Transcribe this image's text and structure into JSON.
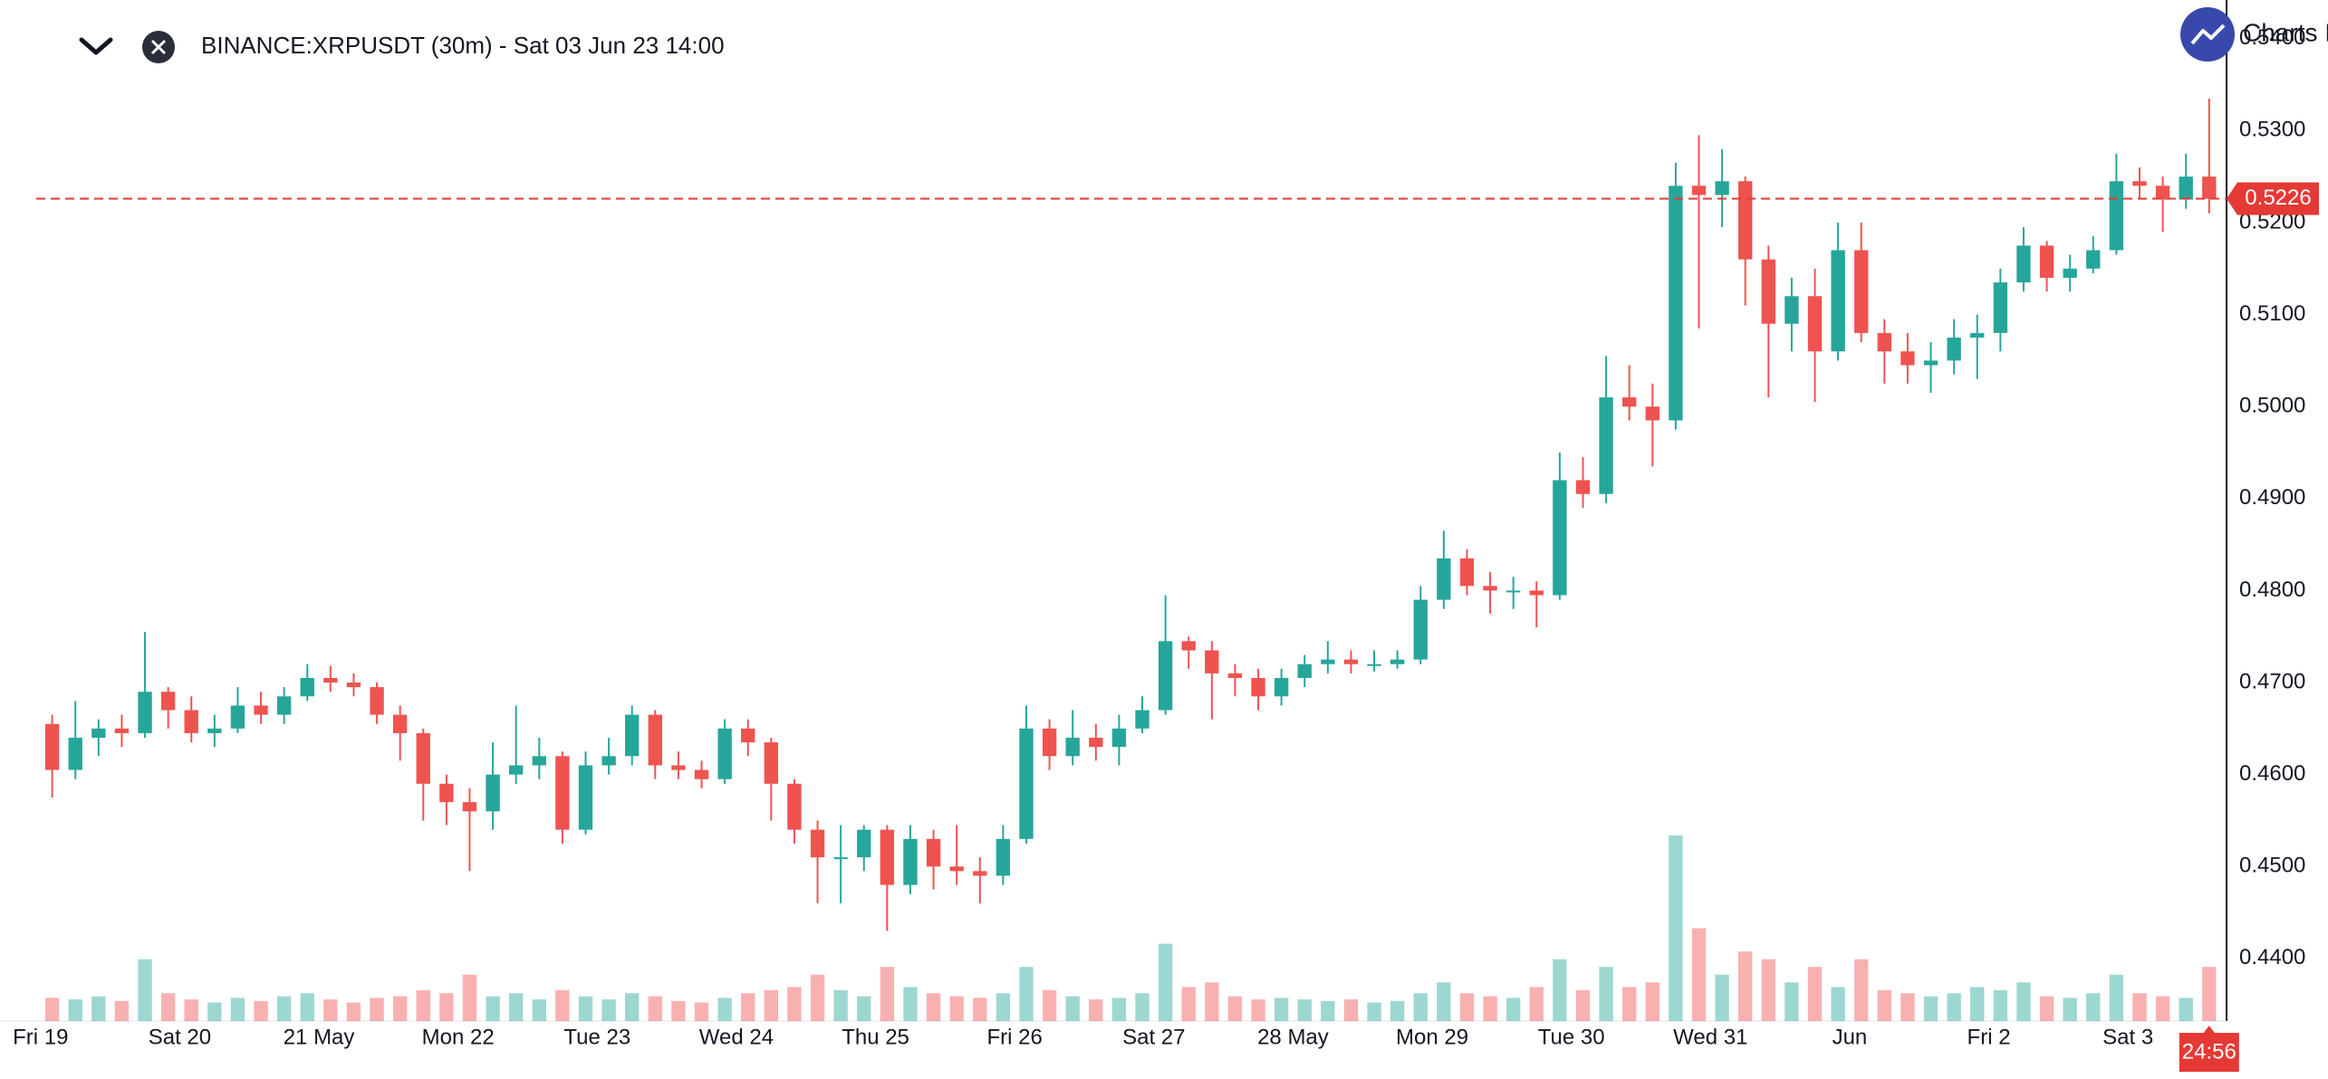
{
  "chart_data": {
    "type": "candlestick",
    "title": "BINANCE:XRPUSDT (30m) - Sat 03 Jun 23 14:00",
    "brand": "Charts I",
    "countdown": "24:56",
    "last_price": 0.5226,
    "up_color": "#26a69a",
    "down_color": "#ef5350",
    "last_price_color": "#e53935",
    "xlim": [
      -7,
      377
    ],
    "xticks": [
      {
        "value": 0,
        "label": "Fri 19"
      },
      {
        "value": 24,
        "label": "Sat 20"
      },
      {
        "value": 48,
        "label": "21 May"
      },
      {
        "value": 72,
        "label": "Mon 22"
      },
      {
        "value": 96,
        "label": "Tue 23"
      },
      {
        "value": 120,
        "label": "Wed 24"
      },
      {
        "value": 144,
        "label": "Thu 25"
      },
      {
        "value": 168,
        "label": "Fri 26"
      },
      {
        "value": 192,
        "label": "Sat 27"
      },
      {
        "value": 216,
        "label": "28 May"
      },
      {
        "value": 240,
        "label": "Mon 29"
      },
      {
        "value": 264,
        "label": "Tue 30"
      },
      {
        "value": 288,
        "label": "Wed 31"
      },
      {
        "value": 312,
        "label": "Jun"
      },
      {
        "value": 336,
        "label": "Fri 2"
      },
      {
        "value": 360,
        "label": "Sat 3"
      }
    ],
    "ylim": [
      0.4332,
      0.5442
    ],
    "yticks": [
      {
        "value": 0.44,
        "label": "0.4400"
      },
      {
        "value": 0.45,
        "label": "0.4500"
      },
      {
        "value": 0.46,
        "label": "0.4600"
      },
      {
        "value": 0.47,
        "label": "0.4700"
      },
      {
        "value": 0.48,
        "label": "0.4800"
      },
      {
        "value": 0.49,
        "label": "0.4900"
      },
      {
        "value": 0.5,
        "label": "0.5000"
      },
      {
        "value": 0.51,
        "label": "0.5100"
      },
      {
        "value": 0.52,
        "label": "0.5200"
      },
      {
        "value": 0.53,
        "label": "0.5300"
      },
      {
        "value": 0.54,
        "label": "0.5400"
      }
    ],
    "x": [
      0,
      4,
      8,
      12,
      16,
      20,
      24,
      28,
      32,
      36,
      40,
      44,
      48,
      52,
      56,
      60,
      64,
      68,
      72,
      76,
      80,
      84,
      88,
      92,
      96,
      100,
      104,
      108,
      112,
      116,
      120,
      124,
      128,
      132,
      136,
      140,
      144,
      148,
      152,
      156,
      160,
      164,
      168,
      172,
      176,
      180,
      184,
      188,
      192,
      196,
      200,
      204,
      208,
      212,
      216,
      220,
      224,
      228,
      232,
      236,
      240,
      244,
      248,
      252,
      256,
      260,
      264,
      268,
      272,
      276,
      280,
      284,
      288,
      292,
      296,
      300,
      304,
      308,
      312,
      316,
      320,
      324,
      328,
      332,
      336,
      340,
      344,
      348,
      352,
      356,
      360,
      364,
      368,
      372
    ],
    "open": [
      0.4655,
      0.4605,
      0.464,
      0.465,
      0.4645,
      0.469,
      0.467,
      0.4645,
      0.465,
      0.4675,
      0.4665,
      0.4685,
      0.4705,
      0.47,
      0.4695,
      0.4665,
      0.4645,
      0.459,
      0.457,
      0.456,
      0.46,
      0.461,
      0.462,
      0.454,
      0.461,
      0.462,
      0.4665,
      0.461,
      0.4605,
      0.4595,
      0.465,
      0.4635,
      0.459,
      0.454,
      0.451,
      0.451,
      0.454,
      0.448,
      0.453,
      0.45,
      0.4495,
      0.449,
      0.453,
      0.465,
      0.462,
      0.464,
      0.463,
      0.465,
      0.467,
      0.4745,
      0.4735,
      0.471,
      0.4705,
      0.4685,
      0.4705,
      0.472,
      0.4725,
      0.472,
      0.472,
      0.4725,
      0.479,
      0.4835,
      0.4805,
      0.48,
      0.48,
      0.4795,
      0.492,
      0.4905,
      0.501,
      0.5,
      0.4985,
      0.524,
      0.523,
      0.5245,
      0.516,
      0.509,
      0.512,
      0.506,
      0.517,
      0.508,
      0.506,
      0.5045,
      0.505,
      0.5075,
      0.508,
      0.5135,
      0.5175,
      0.514,
      0.515,
      0.517,
      0.5245,
      0.524,
      0.5225,
      0.525
    ],
    "high": [
      0.4665,
      0.468,
      0.466,
      0.4665,
      0.4755,
      0.4695,
      0.4685,
      0.4665,
      0.4695,
      0.469,
      0.4695,
      0.472,
      0.4718,
      0.471,
      0.47,
      0.4675,
      0.465,
      0.46,
      0.4585,
      0.4635,
      0.4675,
      0.464,
      0.4625,
      0.4625,
      0.464,
      0.4675,
      0.467,
      0.4625,
      0.4615,
      0.466,
      0.466,
      0.464,
      0.4595,
      0.455,
      0.4545,
      0.4545,
      0.4545,
      0.4545,
      0.454,
      0.4545,
      0.451,
      0.4545,
      0.4675,
      0.466,
      0.467,
      0.4655,
      0.4665,
      0.4685,
      0.4795,
      0.475,
      0.4745,
      0.472,
      0.4715,
      0.4715,
      0.473,
      0.4745,
      0.4735,
      0.4735,
      0.4735,
      0.4805,
      0.4865,
      0.4845,
      0.482,
      0.4815,
      0.481,
      0.495,
      0.4945,
      0.5055,
      0.5045,
      0.5025,
      0.5265,
      0.5295,
      0.528,
      0.525,
      0.5175,
      0.514,
      0.515,
      0.52,
      0.52,
      0.5095,
      0.508,
      0.507,
      0.5095,
      0.51,
      0.515,
      0.5195,
      0.518,
      0.5165,
      0.5185,
      0.5275,
      0.526,
      0.525,
      0.5275,
      0.5335
    ],
    "low": [
      0.4575,
      0.4595,
      0.462,
      0.463,
      0.464,
      0.465,
      0.4635,
      0.463,
      0.4645,
      0.4655,
      0.4655,
      0.468,
      0.469,
      0.4685,
      0.4655,
      0.4615,
      0.455,
      0.4545,
      0.4495,
      0.454,
      0.459,
      0.4595,
      0.4525,
      0.4535,
      0.46,
      0.461,
      0.4595,
      0.4595,
      0.4585,
      0.459,
      0.462,
      0.455,
      0.4525,
      0.446,
      0.446,
      0.4495,
      0.443,
      0.447,
      0.4475,
      0.448,
      0.446,
      0.448,
      0.4525,
      0.4605,
      0.461,
      0.4615,
      0.461,
      0.4645,
      0.4665,
      0.4715,
      0.466,
      0.4685,
      0.467,
      0.4675,
      0.4695,
      0.471,
      0.471,
      0.4712,
      0.4715,
      0.472,
      0.478,
      0.4795,
      0.4775,
      0.478,
      0.476,
      0.479,
      0.489,
      0.4895,
      0.4985,
      0.4935,
      0.4975,
      0.5085,
      0.5195,
      0.511,
      0.501,
      0.506,
      0.5005,
      0.505,
      0.507,
      0.5025,
      0.5025,
      0.5015,
      0.5035,
      0.503,
      0.506,
      0.5125,
      0.5125,
      0.5125,
      0.5145,
      0.5165,
      0.5225,
      0.519,
      0.5215,
      0.521
    ],
    "close": [
      0.4605,
      0.464,
      0.465,
      0.4645,
      0.469,
      0.467,
      0.4645,
      0.465,
      0.4675,
      0.4665,
      0.4685,
      0.4705,
      0.47,
      0.4695,
      0.4665,
      0.4645,
      0.459,
      0.457,
      0.456,
      0.46,
      0.461,
      0.462,
      0.454,
      0.461,
      0.462,
      0.4665,
      0.461,
      0.4605,
      0.4595,
      0.465,
      0.4635,
      0.459,
      0.454,
      0.451,
      0.451,
      0.454,
      0.448,
      0.453,
      0.45,
      0.4495,
      0.449,
      0.453,
      0.465,
      0.462,
      0.464,
      0.463,
      0.465,
      0.467,
      0.4745,
      0.4735,
      0.471,
      0.4705,
      0.4685,
      0.4705,
      0.472,
      0.4725,
      0.472,
      0.472,
      0.4725,
      0.479,
      0.4835,
      0.4805,
      0.48,
      0.48,
      0.4795,
      0.492,
      0.4905,
      0.501,
      0.5,
      0.4985,
      0.524,
      0.523,
      0.5245,
      0.516,
      0.509,
      0.512,
      0.506,
      0.517,
      0.508,
      0.506,
      0.5045,
      0.505,
      0.5075,
      0.508,
      0.5135,
      0.5175,
      0.514,
      0.515,
      0.517,
      0.5245,
      0.524,
      0.5225,
      0.525,
      0.5226
    ],
    "volume": [
      15,
      14,
      16,
      13,
      40,
      18,
      14,
      12,
      15,
      13,
      16,
      18,
      14,
      12,
      15,
      16,
      20,
      18,
      30,
      16,
      18,
      14,
      20,
      16,
      14,
      18,
      16,
      13,
      12,
      15,
      18,
      20,
      22,
      30,
      20,
      16,
      35,
      22,
      18,
      16,
      15,
      18,
      35,
      20,
      16,
      14,
      15,
      18,
      50,
      22,
      25,
      16,
      14,
      15,
      14,
      13,
      14,
      12,
      13,
      18,
      25,
      18,
      16,
      15,
      22,
      40,
      20,
      35,
      22,
      25,
      120,
      60,
      30,
      45,
      40,
      25,
      35,
      22,
      40,
      20,
      18,
      16,
      18,
      22,
      20,
      25,
      16,
      15,
      18,
      30,
      18,
      16,
      15,
      35
    ]
  }
}
